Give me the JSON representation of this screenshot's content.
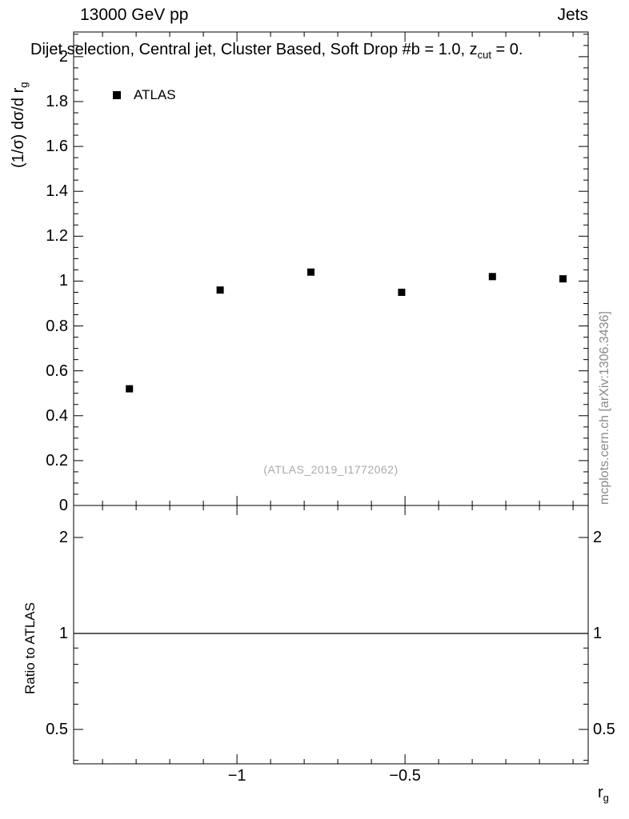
{
  "header": {
    "left": "13000 GeV pp",
    "right": "Jets"
  },
  "chart_data": {
    "type": "scatter",
    "title": {
      "pre": "Dijet selection, Central jet, Cluster Based, Soft Drop #b = 1.0, z",
      "sub": "cut",
      "post": " = 0."
    },
    "axes": {
      "x_label": {
        "pre": "r",
        "sub": "g"
      },
      "y_label": {
        "pre": "(1/σ) dσ/d r",
        "sub": "g"
      },
      "ratio_y_label": "Ratio to ATLAS"
    },
    "legend": {
      "entries": [
        {
          "label": "ATLAS",
          "marker": "filled-square",
          "color": "#000000"
        }
      ]
    },
    "watermark": "(ATLAS_2019_I1772062)",
    "side_note": "mcplots.cern.ch [arXiv:1306.3436]",
    "colors": {
      "frame": "#000000",
      "marker": "#000000",
      "watermark": "#aaaaaa",
      "side_note": "#8a8a8a"
    },
    "main_panel": {
      "xlim": [
        -1.486,
        0.045
      ],
      "ylim": [
        0,
        2.11
      ],
      "x_major_ticks": [
        {
          "v": -1,
          "label": "−1"
        },
        {
          "v": -0.5,
          "label": "−0.5"
        }
      ],
      "x_minor_ticks": [
        -1.4,
        -1.3,
        -1.2,
        -1.1,
        -0.9,
        -0.8,
        -0.7,
        -0.6,
        -0.4,
        -0.3,
        -0.2,
        -0.1,
        0
      ],
      "y_major_ticks": [
        {
          "v": 0,
          "label": "0"
        },
        {
          "v": 0.2,
          "label": "0.2"
        },
        {
          "v": 0.4,
          "label": "0.4"
        },
        {
          "v": 0.6,
          "label": "0.6"
        },
        {
          "v": 0.8,
          "label": "0.8"
        },
        {
          "v": 1,
          "label": "1"
        },
        {
          "v": 1.2,
          "label": "1.2"
        },
        {
          "v": 1.4,
          "label": "1.4"
        },
        {
          "v": 1.6,
          "label": "1.6"
        },
        {
          "v": 1.8,
          "label": "1.8"
        },
        {
          "v": 2,
          "label": "2"
        }
      ],
      "y_minor_step": 0.05,
      "series": [
        {
          "name": "ATLAS",
          "marker": "filled-square",
          "color": "#000000",
          "points": [
            [
              -1.32,
              0.52
            ],
            [
              -1.05,
              0.96
            ],
            [
              -0.78,
              1.04
            ],
            [
              -0.51,
              0.95
            ],
            [
              -0.24,
              1.02
            ],
            [
              -0.03,
              1.01
            ]
          ]
        }
      ]
    },
    "ratio_panel": {
      "y_scale": "log",
      "ylim": [
        0.39,
        2.52
      ],
      "y_major_ticks": [
        {
          "v": 0.5,
          "label": "0.5"
        },
        {
          "v": 1,
          "label": "1"
        },
        {
          "v": 2,
          "label": "2"
        }
      ],
      "y_minor_ticks": [
        0.4,
        0.6,
        0.7,
        0.8,
        0.9
      ],
      "reference_line_y": 1
    }
  }
}
